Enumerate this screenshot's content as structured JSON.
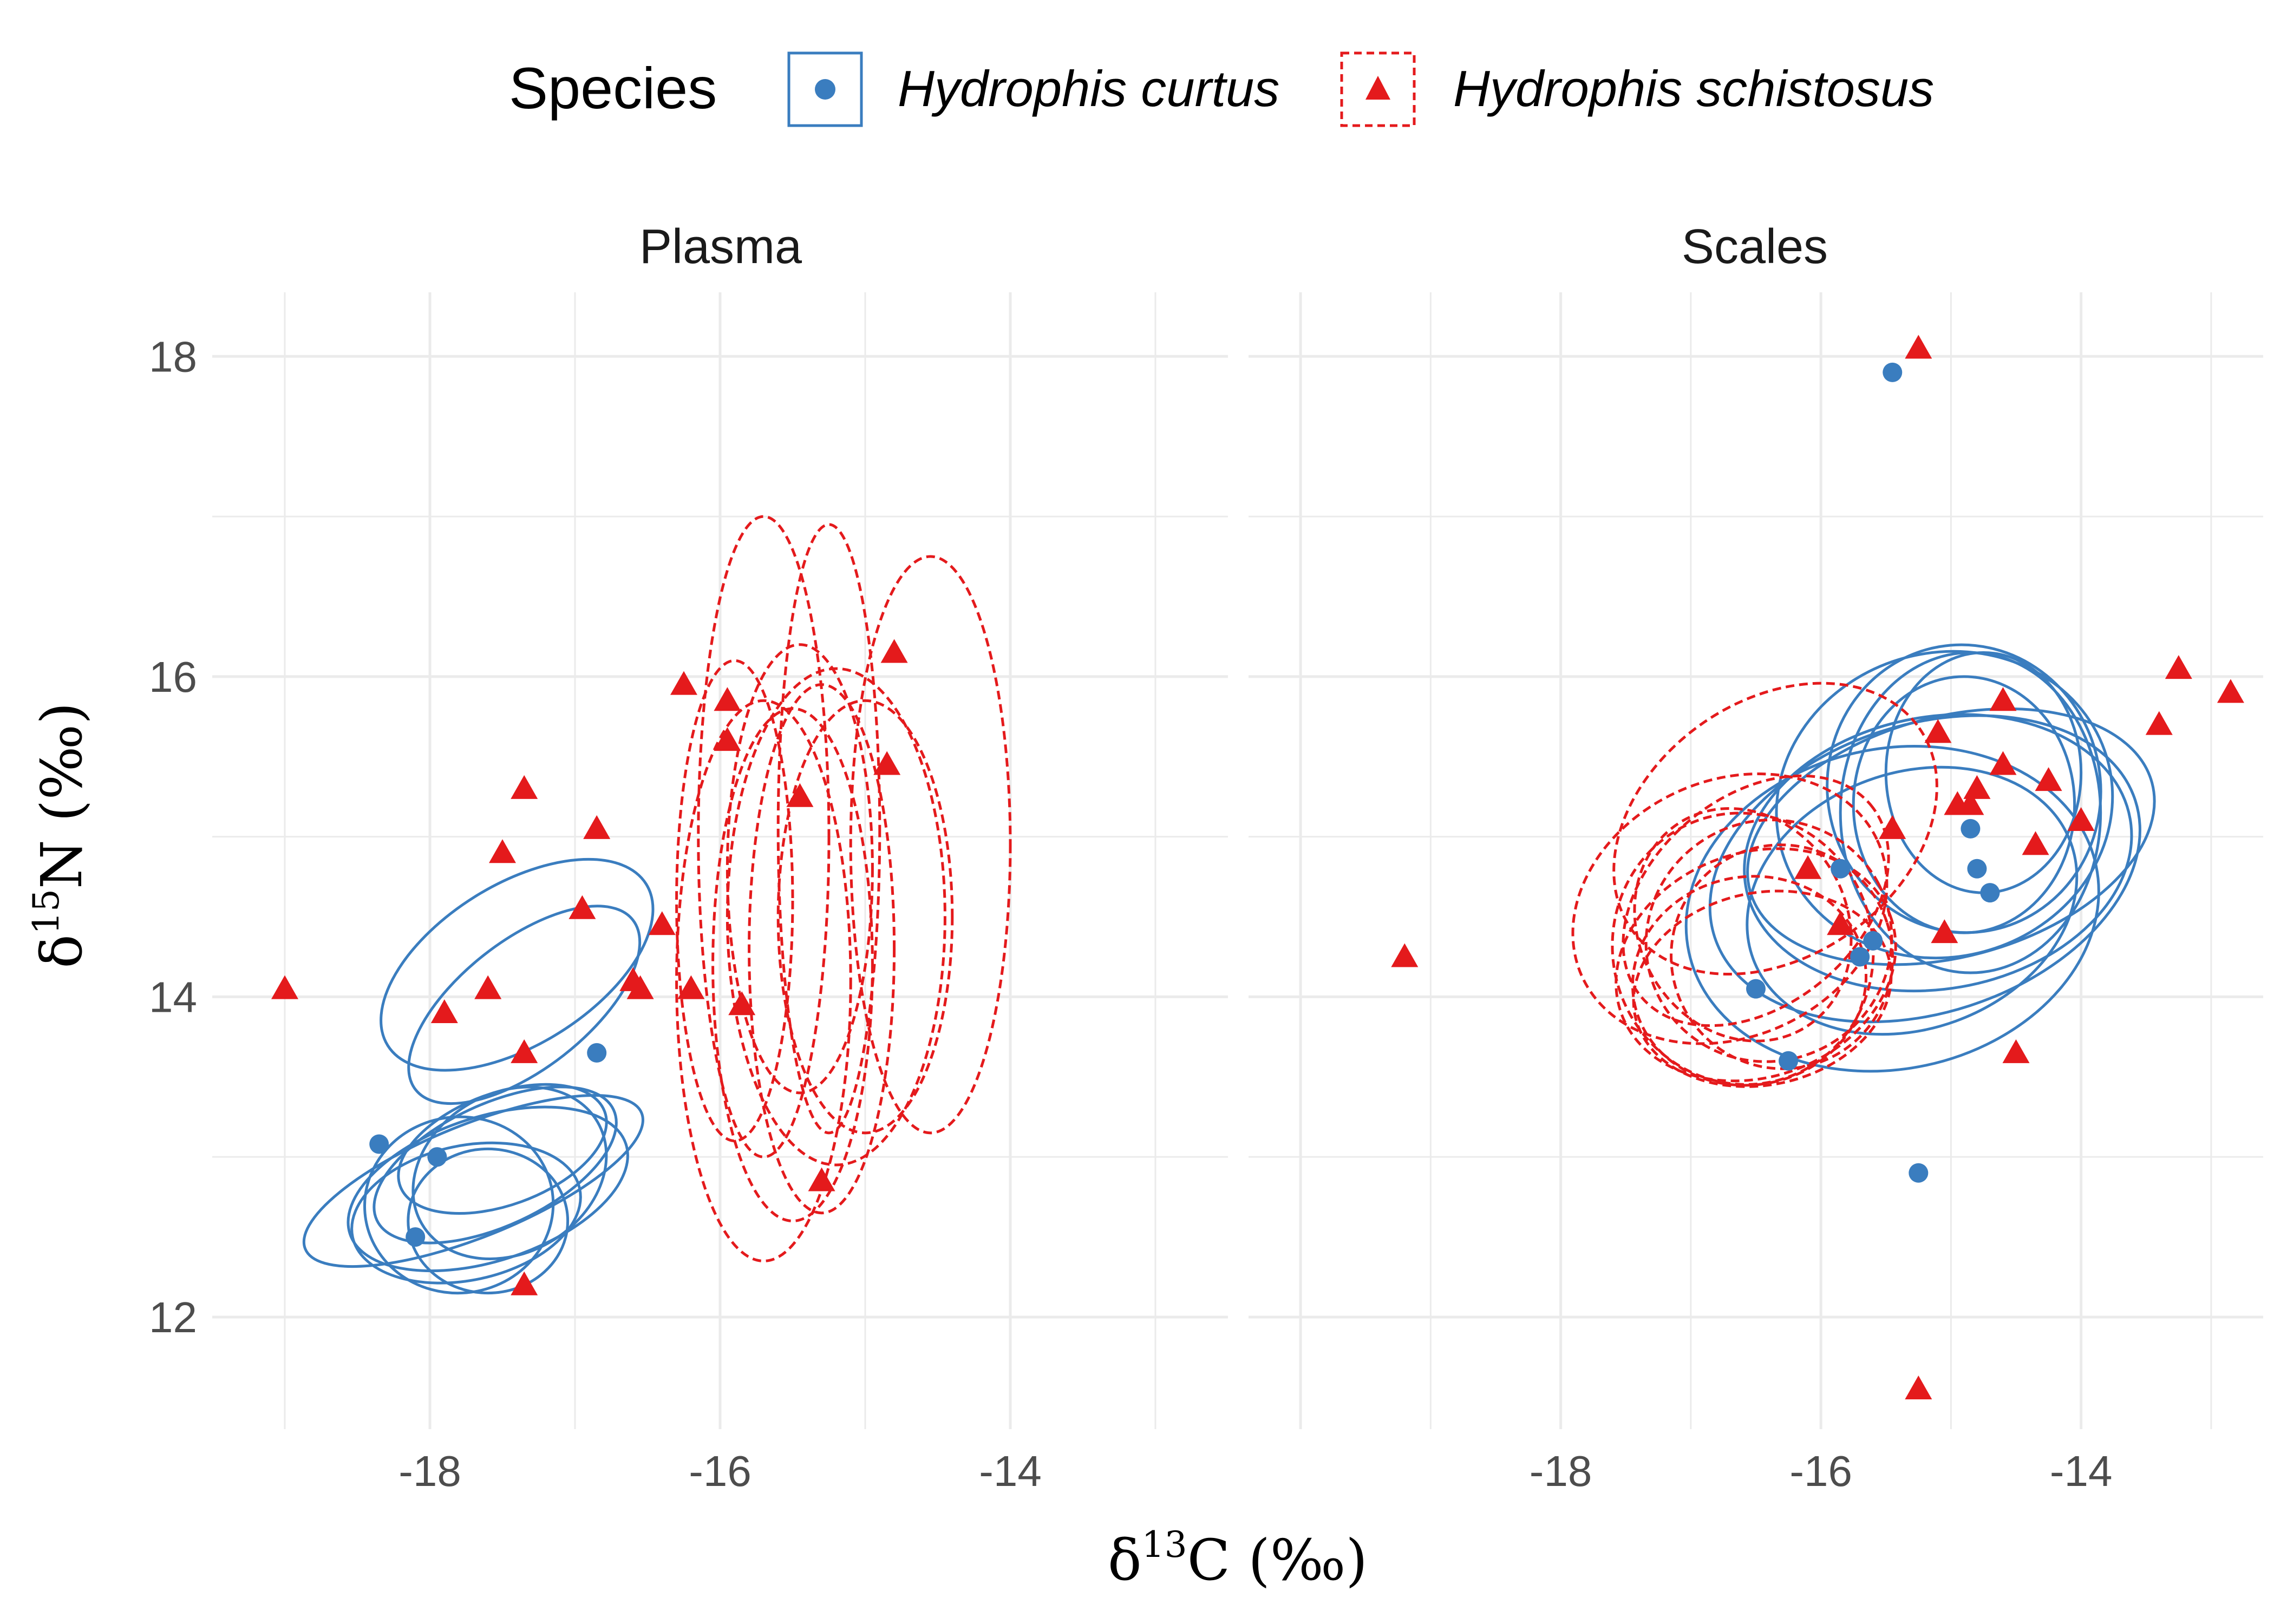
{
  "legend": {
    "title": "Species",
    "entries": [
      {
        "label": "Hydrophis curtus",
        "color": "#3a7dbf",
        "shape": "circle",
        "line": "solid"
      },
      {
        "label": "Hydrophis schistosus",
        "color": "#e41a1c",
        "shape": "triangle",
        "line": "dashed"
      }
    ]
  },
  "axis_titles": {
    "x": {
      "delta": "δ",
      "mass": "13",
      "element": "C (‰)"
    },
    "y": {
      "delta": "δ",
      "mass": "15",
      "element": "N (‰)"
    }
  },
  "chart_data": {
    "type": "scatter",
    "ylim": [
      11.3,
      18.4
    ],
    "yticks": [
      12,
      14,
      16,
      18
    ],
    "grid": true,
    "legend_position": "top",
    "panels": [
      {
        "title": "Plasma",
        "xlim": [
          -19.5,
          -12.5
        ],
        "xticks": [
          -18,
          -16,
          -14
        ],
        "series": [
          {
            "name": "Hydrophis curtus",
            "points": [
              [
                -18.35,
                13.08
              ],
              [
                -17.95,
                13.0
              ],
              [
                -18.1,
                12.5
              ],
              [
                -16.85,
                13.65
              ]
            ],
            "ellipses": [
              {
                "cx": -17.4,
                "cy": 14.2,
                "rx": 1.05,
                "ry": 0.5,
                "angle": 32
              },
              {
                "cx": -17.35,
                "cy": 13.95,
                "rx": 0.95,
                "ry": 0.4,
                "angle": 38
              },
              {
                "cx": -17.6,
                "cy": 12.8,
                "rx": 1.0,
                "ry": 0.45,
                "angle": 18
              },
              {
                "cx": -17.7,
                "cy": 12.85,
                "rx": 1.25,
                "ry": 0.35,
                "angle": 22
              },
              {
                "cx": -17.55,
                "cy": 12.95,
                "rx": 0.9,
                "ry": 0.38,
                "angle": 25
              },
              {
                "cx": -17.75,
                "cy": 12.65,
                "rx": 0.8,
                "ry": 0.42,
                "angle": 12
              },
              {
                "cx": -17.45,
                "cy": 12.9,
                "rx": 0.7,
                "ry": 0.5,
                "angle": 30
              },
              {
                "cx": -17.8,
                "cy": 12.7,
                "rx": 0.65,
                "ry": 0.55,
                "angle": 5
              },
              {
                "cx": -17.6,
                "cy": 12.6,
                "rx": 0.55,
                "ry": 0.45,
                "angle": 0
              },
              {
                "cx": -17.5,
                "cy": 13.05,
                "rx": 0.75,
                "ry": 0.35,
                "angle": 20
              }
            ]
          },
          {
            "name": "Hydrophis schistosus",
            "points": [
              [
                -19.0,
                14.05
              ],
              [
                -17.9,
                13.9
              ],
              [
                -17.6,
                14.05
              ],
              [
                -17.5,
                14.9
              ],
              [
                -17.35,
                13.65
              ],
              [
                -17.35,
                15.3
              ],
              [
                -17.35,
                12.2
              ],
              [
                -16.95,
                14.55
              ],
              [
                -16.85,
                15.05
              ],
              [
                -16.6,
                14.1
              ],
              [
                -16.55,
                14.05
              ],
              [
                -16.4,
                14.45
              ],
              [
                -16.25,
                15.95
              ],
              [
                -16.2,
                14.05
              ],
              [
                -15.95,
                15.85
              ],
              [
                -15.95,
                15.6
              ],
              [
                -15.85,
                13.95
              ],
              [
                -15.45,
                15.25
              ],
              [
                -15.3,
                12.85
              ],
              [
                -14.85,
                15.45
              ],
              [
                -14.8,
                16.15
              ]
            ],
            "ellipses": [
              {
                "cx": -15.7,
                "cy": 15.0,
                "rx": 0.45,
                "ry": 2.0,
                "angle": 0
              },
              {
                "cx": -15.25,
                "cy": 15.05,
                "rx": 0.35,
                "ry": 1.9,
                "angle": 0
              },
              {
                "cx": -14.55,
                "cy": 14.95,
                "rx": 0.55,
                "ry": 1.8,
                "angle": 0
              },
              {
                "cx": -15.7,
                "cy": 14.1,
                "rx": 0.6,
                "ry": 1.75,
                "angle": 0
              },
              {
                "cx": -15.2,
                "cy": 14.5,
                "rx": 0.75,
                "ry": 1.55,
                "angle": 0
              },
              {
                "cx": -15.5,
                "cy": 14.2,
                "rx": 0.55,
                "ry": 1.6,
                "angle": 0
              },
              {
                "cx": -15.3,
                "cy": 14.3,
                "rx": 0.5,
                "ry": 1.65,
                "angle": 0
              },
              {
                "cx": -15.9,
                "cy": 14.6,
                "rx": 0.4,
                "ry": 1.5,
                "angle": 0
              },
              {
                "cx": -15.0,
                "cy": 14.5,
                "rx": 0.6,
                "ry": 1.35,
                "angle": 0
              },
              {
                "cx": -15.45,
                "cy": 14.8,
                "rx": 0.5,
                "ry": 1.4,
                "angle": 0
              }
            ]
          }
        ]
      },
      {
        "title": "Scales",
        "xlim": [
          -20.4,
          -12.6
        ],
        "xticks": [
          -18,
          -16,
          -14
        ],
        "series": [
          {
            "name": "Hydrophis curtus",
            "points": [
              [
                -15.45,
                17.9
              ],
              [
                -16.5,
                14.05
              ],
              [
                -16.25,
                13.6
              ],
              [
                -15.85,
                14.8
              ],
              [
                -15.7,
                14.25
              ],
              [
                -15.6,
                14.35
              ],
              [
                -15.25,
                12.9
              ],
              [
                -14.85,
                15.05
              ],
              [
                -14.8,
                14.8
              ],
              [
                -14.7,
                14.65
              ]
            ],
            "ellipses": [
              {
                "cx": -15.05,
                "cy": 15.2,
                "rx": 1.3,
                "ry": 0.95,
                "angle": 15
              },
              {
                "cx": -14.9,
                "cy": 15.3,
                "rx": 1.05,
                "ry": 0.9,
                "angle": 10
              },
              {
                "cx": -14.85,
                "cy": 15.15,
                "rx": 1.0,
                "ry": 1.0,
                "angle": 0
              },
              {
                "cx": -15.1,
                "cy": 14.9,
                "rx": 1.5,
                "ry": 0.85,
                "angle": 10
              },
              {
                "cx": -15.0,
                "cy": 15.0,
                "rx": 1.6,
                "ry": 0.75,
                "angle": 15
              },
              {
                "cx": -14.9,
                "cy": 15.2,
                "rx": 0.85,
                "ry": 0.8,
                "angle": 0
              },
              {
                "cx": -15.2,
                "cy": 14.8,
                "rx": 1.7,
                "ry": 0.9,
                "angle": 18
              },
              {
                "cx": -15.45,
                "cy": 14.55,
                "rx": 1.6,
                "ry": 1.0,
                "angle": 12
              },
              {
                "cx": -14.75,
                "cy": 15.4,
                "rx": 0.75,
                "ry": 0.75,
                "angle": 0
              },
              {
                "cx": -15.3,
                "cy": 14.6,
                "rx": 1.3,
                "ry": 0.8,
                "angle": 20
              }
            ]
          },
          {
            "name": "Hydrophis schistosus",
            "points": [
              [
                -19.2,
                14.25
              ],
              [
                -16.1,
                14.8
              ],
              [
                -15.85,
                14.45
              ],
              [
                -15.45,
                15.05
              ],
              [
                -15.25,
                18.05
              ],
              [
                -15.25,
                11.55
              ],
              [
                -15.1,
                15.65
              ],
              [
                -15.05,
                14.4
              ],
              [
                -14.95,
                15.2
              ],
              [
                -14.85,
                15.2
              ],
              [
                -14.8,
                15.3
              ],
              [
                -14.6,
                15.85
              ],
              [
                -14.6,
                15.45
              ],
              [
                -14.5,
                13.65
              ],
              [
                -14.35,
                14.95
              ],
              [
                -14.25,
                15.35
              ],
              [
                -14.0,
                15.1
              ],
              [
                -13.4,
                15.7
              ],
              [
                -13.25,
                16.05
              ],
              [
                -12.85,
                15.9
              ]
            ],
            "ellipses": [
              {
                "cx": -16.35,
                "cy": 15.05,
                "rx": 1.35,
                "ry": 0.8,
                "angle": 35
              },
              {
                "cx": -16.7,
                "cy": 14.55,
                "rx": 1.25,
                "ry": 0.8,
                "angle": 25
              },
              {
                "cx": -16.6,
                "cy": 14.3,
                "rx": 1.0,
                "ry": 0.85,
                "angle": 15
              },
              {
                "cx": -16.5,
                "cy": 14.2,
                "rx": 1.1,
                "ry": 0.7,
                "angle": 20
              },
              {
                "cx": -16.4,
                "cy": 14.35,
                "rx": 0.95,
                "ry": 0.75,
                "angle": 28
              },
              {
                "cx": -16.55,
                "cy": 14.1,
                "rx": 0.9,
                "ry": 0.65,
                "angle": 10
              },
              {
                "cx": -16.3,
                "cy": 14.25,
                "rx": 0.85,
                "ry": 0.7,
                "angle": 18
              },
              {
                "cx": -16.6,
                "cy": 14.45,
                "rx": 0.8,
                "ry": 0.75,
                "angle": 30
              },
              {
                "cx": -16.45,
                "cy": 14.05,
                "rx": 1.0,
                "ry": 0.6,
                "angle": 12
              },
              {
                "cx": -16.5,
                "cy": 14.6,
                "rx": 1.15,
                "ry": 0.65,
                "angle": 40
              }
            ]
          }
        ]
      }
    ]
  }
}
